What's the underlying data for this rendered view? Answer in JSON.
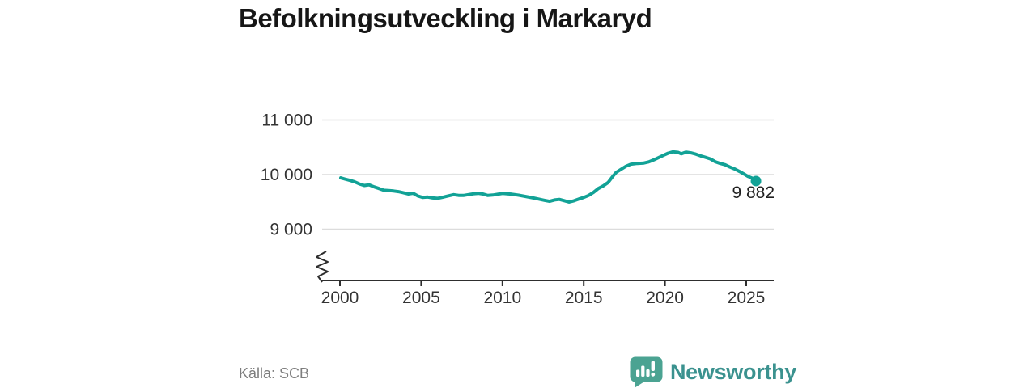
{
  "title": "Befolkningsutveckling i Markaryd",
  "footer": {
    "source": "Källa: SCB",
    "brand_name": "Newsworthy"
  },
  "colors": {
    "accent": "#12A296",
    "grid": "#DCDCDC",
    "axis": "#2E2E2E",
    "tick_text": "#333333",
    "title_text": "#161616",
    "end_label_text": "#1F1F1F",
    "source_text": "#7E7E7E",
    "brand_text": "#3B928F",
    "brand_bubble": "#4BA392",
    "bubble_marks": "#FFFFFF",
    "background": "#FFFFFF"
  },
  "chart_data": {
    "type": "line",
    "title": "Befolkningsutveckling i Markaryd",
    "xlabel": "",
    "ylabel": "",
    "grid": "horizontal",
    "axis_break": true,
    "legend": "none",
    "ylim": [
      9000,
      11000
    ],
    "xlim": [
      1999,
      2026.5
    ],
    "yticks": [
      {
        "value": 9000,
        "label": "9 000"
      },
      {
        "value": 10000,
        "label": "10 000"
      },
      {
        "value": 11000,
        "label": "11 000"
      }
    ],
    "xticks": [
      {
        "value": 2000,
        "label": "2000"
      },
      {
        "value": 2005,
        "label": "2005"
      },
      {
        "value": 2010,
        "label": "2010"
      },
      {
        "value": 2015,
        "label": "2015"
      },
      {
        "value": 2020,
        "label": "2020"
      },
      {
        "value": 2025,
        "label": "2025"
      }
    ],
    "series": [
      {
        "name": "Befolkning",
        "points": [
          [
            2000.05,
            9940
          ],
          [
            2000.3,
            9918
          ],
          [
            2000.6,
            9895
          ],
          [
            2000.9,
            9868
          ],
          [
            2001.2,
            9828
          ],
          [
            2001.5,
            9800
          ],
          [
            2001.8,
            9812
          ],
          [
            2002.1,
            9775
          ],
          [
            2002.4,
            9745
          ],
          [
            2002.7,
            9712
          ],
          [
            2003.0,
            9708
          ],
          [
            2003.3,
            9700
          ],
          [
            2003.6,
            9688
          ],
          [
            2003.9,
            9668
          ],
          [
            2004.2,
            9645
          ],
          [
            2004.5,
            9658
          ],
          [
            2004.8,
            9608
          ],
          [
            2005.1,
            9580
          ],
          [
            2005.4,
            9588
          ],
          [
            2005.7,
            9572
          ],
          [
            2006.0,
            9565
          ],
          [
            2006.3,
            9582
          ],
          [
            2006.6,
            9605
          ],
          [
            2007.0,
            9632
          ],
          [
            2007.3,
            9620
          ],
          [
            2007.6,
            9618
          ],
          [
            2007.9,
            9632
          ],
          [
            2008.2,
            9648
          ],
          [
            2008.5,
            9656
          ],
          [
            2008.8,
            9645
          ],
          [
            2009.1,
            9618
          ],
          [
            2009.4,
            9625
          ],
          [
            2009.7,
            9640
          ],
          [
            2010.0,
            9655
          ],
          [
            2010.3,
            9648
          ],
          [
            2010.6,
            9640
          ],
          [
            2011.0,
            9622
          ],
          [
            2011.4,
            9600
          ],
          [
            2011.8,
            9578
          ],
          [
            2012.2,
            9552
          ],
          [
            2012.6,
            9528
          ],
          [
            2012.9,
            9510
          ],
          [
            2013.2,
            9535
          ],
          [
            2013.5,
            9545
          ],
          [
            2013.8,
            9522
          ],
          [
            2014.1,
            9497
          ],
          [
            2014.4,
            9520
          ],
          [
            2014.7,
            9552
          ],
          [
            2015.0,
            9580
          ],
          [
            2015.3,
            9618
          ],
          [
            2015.6,
            9672
          ],
          [
            2015.9,
            9745
          ],
          [
            2016.2,
            9792
          ],
          [
            2016.5,
            9855
          ],
          [
            2016.8,
            9972
          ],
          [
            2017.0,
            10042
          ],
          [
            2017.3,
            10098
          ],
          [
            2017.6,
            10152
          ],
          [
            2017.9,
            10190
          ],
          [
            2018.3,
            10205
          ],
          [
            2018.7,
            10212
          ],
          [
            2019.0,
            10232
          ],
          [
            2019.3,
            10268
          ],
          [
            2019.6,
            10310
          ],
          [
            2019.9,
            10352
          ],
          [
            2020.2,
            10392
          ],
          [
            2020.5,
            10418
          ],
          [
            2020.8,
            10408
          ],
          [
            2021.0,
            10380
          ],
          [
            2021.3,
            10412
          ],
          [
            2021.6,
            10398
          ],
          [
            2021.9,
            10375
          ],
          [
            2022.2,
            10342
          ],
          [
            2022.5,
            10315
          ],
          [
            2022.8,
            10288
          ],
          [
            2023.1,
            10235
          ],
          [
            2023.4,
            10205
          ],
          [
            2023.7,
            10180
          ],
          [
            2024.0,
            10138
          ],
          [
            2024.3,
            10102
          ],
          [
            2024.6,
            10055
          ],
          [
            2024.9,
            10005
          ],
          [
            2025.1,
            9968
          ],
          [
            2025.35,
            9938
          ],
          [
            2025.6,
            9882
          ]
        ]
      }
    ],
    "end_point": {
      "x": 2025.6,
      "y": 9882
    },
    "end_label": "9 882"
  }
}
